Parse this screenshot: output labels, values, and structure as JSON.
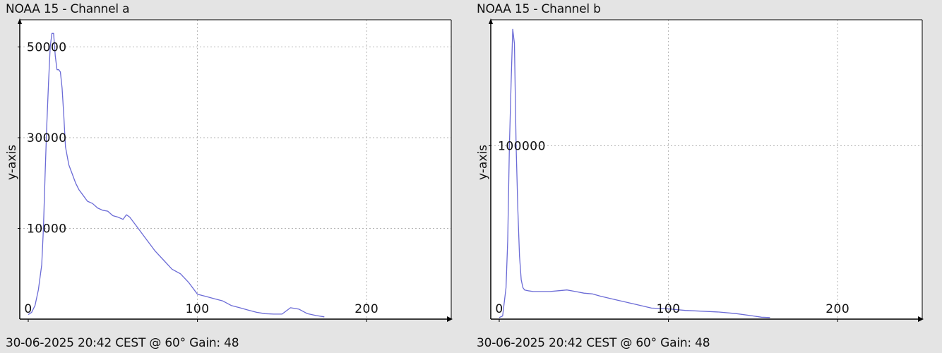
{
  "panels": [
    {
      "title": "NOAA 15 - Channel a",
      "footer": "30-06-2025 20:42 CEST @ 60° Gain: 48"
    },
    {
      "title": "NOAA 15 - Channel b",
      "footer": "30-06-2025 20:42 CEST @ 60° Gain: 48"
    }
  ],
  "colors": {
    "background": "#e4e4e4",
    "plot": "#ffffff",
    "line": "#6b6bd6",
    "grid": "#b4b4b4",
    "axis": "#000000"
  },
  "chart_data": [
    {
      "type": "line",
      "title": "NOAA 15 - Channel a",
      "xlabel": "",
      "ylabel": "y-axis",
      "xlim": [
        -5,
        250
      ],
      "ylim": [
        -10000,
        56000
      ],
      "x_ticks": [
        0,
        100,
        200
      ],
      "y_ticks": [
        10000,
        30000,
        50000
      ],
      "y_tick_labels": [
        "10000",
        "30000",
        "50000"
      ],
      "grid": true,
      "series": [
        {
          "name": "",
          "x": [
            0,
            2,
            4,
            6,
            8,
            9,
            10,
            11,
            12,
            13,
            14,
            15,
            16,
            17,
            18,
            19,
            20,
            21,
            22,
            24,
            26,
            28,
            30,
            32,
            35,
            38,
            41,
            44,
            47,
            50,
            53,
            56,
            58,
            60,
            62,
            65,
            70,
            75,
            80,
            85,
            90,
            95,
            100,
            105,
            110,
            115,
            120,
            125,
            130,
            135,
            140,
            145,
            150,
            155,
            160,
            165,
            170,
            175
          ],
          "y": [
            -9000,
            -8500,
            -7000,
            -3500,
            2000,
            10000,
            22000,
            33000,
            42000,
            50000,
            53000,
            53000,
            48000,
            45000,
            45000,
            44500,
            41000,
            35000,
            28000,
            24000,
            22000,
            20000,
            18500,
            17500,
            16000,
            15500,
            14500,
            14000,
            13800,
            12800,
            12500,
            12000,
            13000,
            12500,
            11500,
            10000,
            7500,
            5000,
            3000,
            1000,
            0,
            -2000,
            -4500,
            -5000,
            -5500,
            -6000,
            -7000,
            -7500,
            -8000,
            -8500,
            -8800,
            -8900,
            -8900,
            -7500,
            -7800,
            -8800,
            -9200,
            -9500
          ]
        }
      ]
    },
    {
      "type": "line",
      "title": "NOAA 15 - Channel b",
      "xlabel": "",
      "ylabel": "y-axis",
      "xlim": [
        -5,
        250
      ],
      "ylim": [
        -10000,
        180000
      ],
      "x_ticks": [
        0,
        100,
        200
      ],
      "y_ticks": [
        100000
      ],
      "y_tick_labels": [
        "100000"
      ],
      "grid": true,
      "series": [
        {
          "name": "",
          "x": [
            0,
            2,
            4,
            5,
            6,
            7,
            8,
            9,
            10,
            11,
            12,
            13,
            14,
            15,
            17,
            20,
            25,
            30,
            35,
            40,
            45,
            50,
            55,
            60,
            70,
            80,
            90,
            100,
            110,
            120,
            130,
            140,
            150,
            155,
            160
          ],
          "y": [
            -9000,
            -8000,
            10000,
            40000,
            100000,
            140000,
            174000,
            165000,
            100000,
            60000,
            30000,
            15000,
            10000,
            8500,
            8000,
            7500,
            7500,
            7500,
            8000,
            8500,
            7500,
            6500,
            6000,
            4500,
            2000,
            -500,
            -3000,
            -3500,
            -4500,
            -5000,
            -5500,
            -6500,
            -8000,
            -8800,
            -9000
          ]
        }
      ]
    }
  ]
}
